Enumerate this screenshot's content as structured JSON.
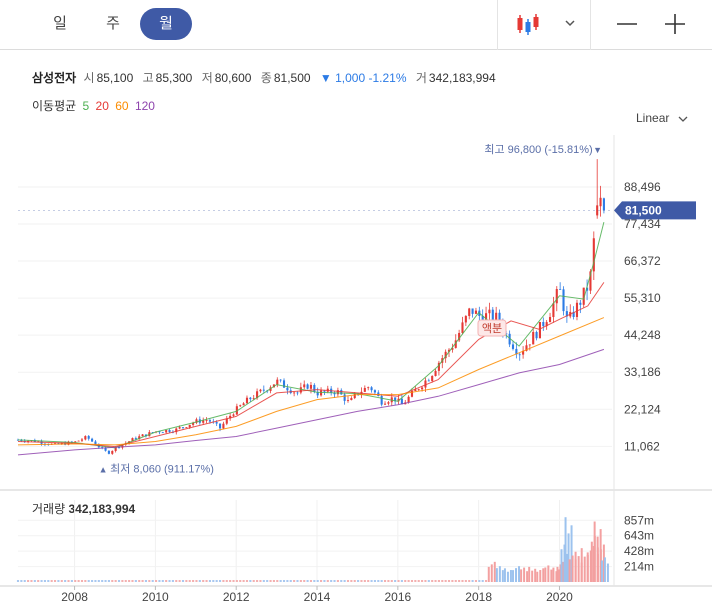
{
  "tabs": [
    {
      "label": "일",
      "active": false
    },
    {
      "label": "주",
      "active": false
    },
    {
      "label": "월",
      "active": true
    }
  ],
  "icons": {
    "chart_type": "candlestick-icon",
    "dropdown": "chevron-down-icon",
    "zoom_out": "minus-icon",
    "zoom_in": "plus-icon"
  },
  "info": {
    "name": "삼성전자",
    "open_label": "시",
    "open": "85,100",
    "high_label": "고",
    "high": "85,300",
    "low_label": "저",
    "low": "80,600",
    "close_label": "종",
    "close": "81,500",
    "change_arrow": "▼",
    "change": "1,000",
    "change_pct": "-1.21%",
    "volume_label": "거",
    "volume": "342,183,994"
  },
  "ma": {
    "label": "이동평균",
    "periods": [
      "5",
      "20",
      "60",
      "120"
    ],
    "colors": [
      "#4caf50",
      "#e53935",
      "#fb8c00",
      "#8e44ad"
    ]
  },
  "scale_selector": {
    "label": "Linear",
    "arrow": "⌵"
  },
  "volume_panel": {
    "label": "거래량",
    "value": "342,183,994"
  },
  "colors": {
    "up": "#e53935",
    "down": "#2c7be5",
    "accent": "#3f5aa6",
    "annot": "#5b6fa8"
  },
  "chart_data": {
    "type": "candlestick",
    "title": "",
    "x_range": [
      2006.6,
      2021.3
    ],
    "x_ticks": [
      "2008",
      "2010",
      "2012",
      "2014",
      "2016",
      "2018",
      "2020"
    ],
    "y_ticks": [
      "11,062",
      "22,124",
      "33,186",
      "44,248",
      "55,310",
      "66,372",
      "77,434",
      "88,496"
    ],
    "y_ticks_values": [
      11062,
      22124,
      33186,
      44248,
      55310,
      66372,
      77434,
      88496
    ],
    "y_range": [
      4000,
      104000
    ],
    "current_price": {
      "value": 81500,
      "label": "81,500"
    },
    "high_annotation": {
      "label": "최고 96,800 (-15.81%)",
      "value": 96800,
      "x": 2020.92,
      "arrow": "▼"
    },
    "low_annotation": {
      "label": "최저 8,060 (911.17%)",
      "value": 8060,
      "x": 2008.83,
      "arrow": "▲"
    },
    "event_annotation": {
      "label": "액분",
      "x": 2018.33
    },
    "price_path": [
      [
        2006.6,
        13000
      ],
      [
        2007.0,
        12700
      ],
      [
        2007.5,
        11500
      ],
      [
        2008.0,
        12300
      ],
      [
        2008.3,
        13800
      ],
      [
        2008.6,
        11000
      ],
      [
        2008.83,
        9000
      ],
      [
        2009.0,
        10500
      ],
      [
        2009.5,
        13500
      ],
      [
        2010.0,
        15500
      ],
      [
        2010.5,
        16000
      ],
      [
        2011.0,
        18500
      ],
      [
        2011.3,
        19000
      ],
      [
        2011.6,
        16500
      ],
      [
        2011.9,
        21000
      ],
      [
        2012.3,
        25000
      ],
      [
        2012.7,
        28000
      ],
      [
        2013.0,
        30500
      ],
      [
        2013.5,
        27000
      ],
      [
        2013.8,
        29500
      ],
      [
        2014.0,
        27000
      ],
      [
        2014.5,
        27500
      ],
      [
        2014.8,
        24000
      ],
      [
        2015.0,
        27000
      ],
      [
        2015.3,
        29000
      ],
      [
        2015.6,
        24500
      ],
      [
        2015.9,
        25500
      ],
      [
        2016.1,
        23500
      ],
      [
        2016.5,
        28500
      ],
      [
        2016.8,
        32000
      ],
      [
        2017.0,
        36000
      ],
      [
        2017.4,
        42000
      ],
      [
        2017.8,
        52000
      ],
      [
        2018.0,
        50000
      ],
      [
        2018.4,
        50000
      ],
      [
        2018.7,
        44000
      ],
      [
        2019.0,
        39000
      ],
      [
        2019.5,
        46000
      ],
      [
        2019.8,
        52000
      ],
      [
        2020.0,
        58000
      ],
      [
        2020.2,
        48000
      ],
      [
        2020.5,
        54000
      ],
      [
        2020.75,
        60000
      ],
      [
        2020.85,
        72000
      ],
      [
        2020.92,
        82000
      ],
      [
        2021.0,
        84000
      ],
      [
        2021.1,
        81500
      ]
    ],
    "ma_series": [
      {
        "period": "5",
        "color": "#4caf50",
        "path": [
          [
            2006.6,
            13000
          ],
          [
            2008.0,
            12200
          ],
          [
            2009.0,
            10600
          ],
          [
            2010.0,
            15300
          ],
          [
            2011.0,
            18300
          ],
          [
            2012.0,
            21500
          ],
          [
            2013.0,
            29500
          ],
          [
            2014.0,
            27200
          ],
          [
            2015.0,
            26800
          ],
          [
            2016.0,
            24500
          ],
          [
            2017.0,
            35000
          ],
          [
            2018.0,
            51000
          ],
          [
            2019.0,
            41000
          ],
          [
            2020.0,
            56000
          ],
          [
            2020.6,
            55000
          ],
          [
            2020.85,
            66000
          ],
          [
            2021.1,
            78000
          ]
        ]
      },
      {
        "period": "20",
        "color": "#e53935",
        "path": [
          [
            2006.6,
            12500
          ],
          [
            2008.0,
            12000
          ],
          [
            2009.0,
            11000
          ],
          [
            2010.0,
            14000
          ],
          [
            2011.0,
            17000
          ],
          [
            2012.0,
            20000
          ],
          [
            2013.0,
            27000
          ],
          [
            2014.0,
            28000
          ],
          [
            2015.0,
            27000
          ],
          [
            2016.0,
            26000
          ],
          [
            2017.0,
            31000
          ],
          [
            2018.0,
            43000
          ],
          [
            2018.8,
            48500
          ],
          [
            2019.5,
            46000
          ],
          [
            2020.0,
            49000
          ],
          [
            2020.7,
            53000
          ],
          [
            2021.1,
            60000
          ]
        ]
      },
      {
        "period": "60",
        "color": "#fb8c00",
        "path": [
          [
            2006.6,
            11500
          ],
          [
            2008.0,
            11800
          ],
          [
            2009.0,
            11500
          ],
          [
            2010.0,
            12500
          ],
          [
            2011.0,
            14500
          ],
          [
            2012.0,
            17000
          ],
          [
            2013.0,
            21500
          ],
          [
            2014.0,
            25000
          ],
          [
            2015.0,
            26500
          ],
          [
            2016.0,
            26500
          ],
          [
            2017.0,
            28500
          ],
          [
            2018.0,
            34000
          ],
          [
            2019.0,
            39000
          ],
          [
            2020.0,
            44000
          ],
          [
            2021.1,
            49500
          ]
        ]
      },
      {
        "period": "120",
        "color": "#8e44ad",
        "path": [
          [
            2006.6,
            8500
          ],
          [
            2008.0,
            10000
          ],
          [
            2009.0,
            10800
          ],
          [
            2010.0,
            11500
          ],
          [
            2011.0,
            12800
          ],
          [
            2012.0,
            14000
          ],
          [
            2013.0,
            16500
          ],
          [
            2014.0,
            19000
          ],
          [
            2015.0,
            21500
          ],
          [
            2016.0,
            23500
          ],
          [
            2017.0,
            26000
          ],
          [
            2018.0,
            29500
          ],
          [
            2019.0,
            33000
          ],
          [
            2020.0,
            35500
          ],
          [
            2021.1,
            40000
          ]
        ]
      }
    ],
    "volume": {
      "y_ticks": [
        "214m",
        "428m",
        "643m",
        "857m"
      ],
      "y_ticks_values": [
        214,
        428,
        643,
        857
      ],
      "y_range": [
        0,
        1000
      ],
      "bars": [
        [
          2018.3,
          280
        ],
        [
          2018.5,
          220
        ],
        [
          2018.7,
          190
        ],
        [
          2018.9,
          220
        ],
        [
          2019.1,
          200
        ],
        [
          2019.3,
          210
        ],
        [
          2019.5,
          190
        ],
        [
          2019.7,
          230
        ],
        [
          2019.9,
          200
        ],
        [
          2020.0,
          280
        ],
        [
          2020.1,
          520
        ],
        [
          2020.2,
          900
        ],
        [
          2020.3,
          420
        ],
        [
          2020.45,
          360
        ],
        [
          2020.6,
          470
        ],
        [
          2020.75,
          500
        ],
        [
          2020.85,
          640
        ],
        [
          2020.92,
          840
        ],
        [
          2021.0,
          520
        ],
        [
          2021.1,
          342
        ]
      ]
    }
  }
}
